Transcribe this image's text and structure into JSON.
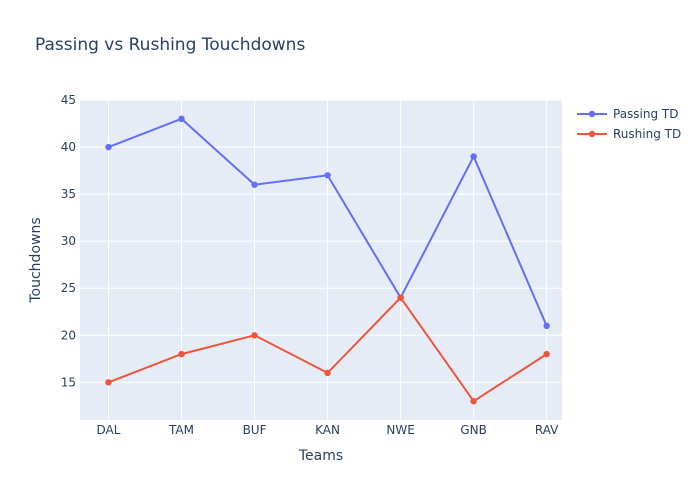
{
  "chart_data": {
    "type": "line",
    "title": "Passing vs Rushing Touchdowns",
    "xlabel": "Teams",
    "ylabel": "Touchdowns",
    "categories": [
      "DAL",
      "TAM",
      "BUF",
      "KAN",
      "NWE",
      "GNB",
      "RAV"
    ],
    "ylim": [
      11,
      45
    ],
    "yticks": [
      15,
      20,
      25,
      30,
      35,
      40,
      45
    ],
    "grid": true,
    "legend_position": "top-right",
    "series": [
      {
        "name": "Passing TD",
        "color": "#636efa",
        "values": [
          40,
          43,
          36,
          37,
          24,
          39,
          21
        ]
      },
      {
        "name": "Rushing TD",
        "color": "#ef553b",
        "values": [
          15,
          18,
          20,
          16,
          24,
          13,
          18
        ]
      }
    ]
  }
}
